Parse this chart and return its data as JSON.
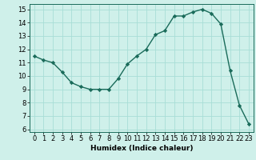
{
  "x": [
    0,
    1,
    2,
    3,
    4,
    5,
    6,
    7,
    8,
    9,
    10,
    11,
    12,
    13,
    14,
    15,
    16,
    17,
    18,
    19,
    20,
    21,
    22,
    23
  ],
  "y": [
    11.5,
    11.2,
    11.0,
    10.3,
    9.5,
    9.2,
    9.0,
    9.0,
    9.0,
    9.8,
    10.9,
    11.5,
    12.0,
    13.1,
    13.4,
    14.5,
    14.5,
    14.8,
    15.0,
    14.7,
    13.9,
    10.4,
    7.8,
    6.4
  ],
  "line_color": "#1a6b5a",
  "marker": "D",
  "markersize": 2.2,
  "linewidth": 1.0,
  "bg_color": "#cff0ea",
  "grid_color": "#a8ddd6",
  "xlabel": "Humidex (Indice chaleur)",
  "xlim": [
    -0.5,
    23.5
  ],
  "ylim": [
    5.8,
    15.4
  ],
  "yticks": [
    6,
    7,
    8,
    9,
    10,
    11,
    12,
    13,
    14,
    15
  ],
  "xticks": [
    0,
    1,
    2,
    3,
    4,
    5,
    6,
    7,
    8,
    9,
    10,
    11,
    12,
    13,
    14,
    15,
    16,
    17,
    18,
    19,
    20,
    21,
    22,
    23
  ],
  "xlabel_fontsize": 6.5,
  "tick_fontsize": 6.0
}
